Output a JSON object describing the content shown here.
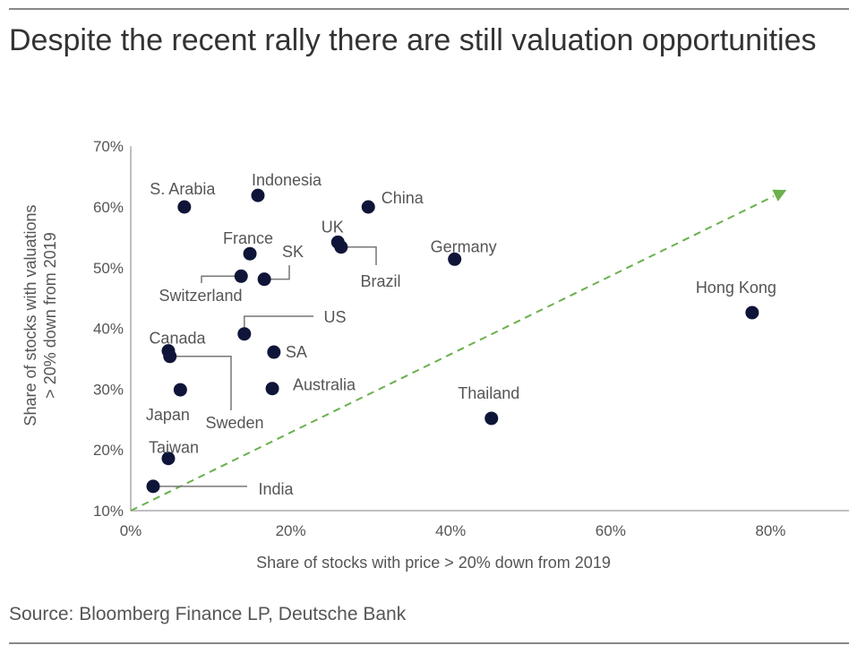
{
  "chart_data": {
    "type": "scatter",
    "title": "Despite the recent rally there are still valuation opportunities",
    "xlabel": "Share of stocks with price > 20% down from 2019",
    "ylabel": "Share of stocks with valuations > 20% down from 2019",
    "xlim": [
      0,
      85
    ],
    "ylim": [
      10,
      70
    ],
    "xticks": [
      "0%",
      "20%",
      "40%",
      "60%",
      "80%"
    ],
    "yticks": [
      "10%",
      "20%",
      "30%",
      "40%",
      "50%",
      "60%",
      "70%"
    ],
    "grid": false,
    "point_color": "#0f1538",
    "trend_color": "#6ab04c",
    "trend_line": {
      "from": [
        0,
        10
      ],
      "to": [
        82,
        62.8
      ],
      "style": "dashed-arrow"
    },
    "points": [
      {
        "label": "S. Arabia",
        "x": 6.7,
        "y": 60.0
      },
      {
        "label": "Indonesia",
        "x": 15.9,
        "y": 61.9
      },
      {
        "label": "China",
        "x": 29.7,
        "y": 60.0
      },
      {
        "label": "France",
        "x": 14.9,
        "y": 52.3
      },
      {
        "label": "UK",
        "x": 25.9,
        "y": 54.2
      },
      {
        "label": "Brazil",
        "x": 26.3,
        "y": 53.4
      },
      {
        "label": "Germany",
        "x": 40.5,
        "y": 51.4
      },
      {
        "label": "Switzerland",
        "x": 13.8,
        "y": 48.6
      },
      {
        "label": "SK",
        "x": 16.7,
        "y": 48.1
      },
      {
        "label": "Hong Kong",
        "x": 77.7,
        "y": 42.6
      },
      {
        "label": "US",
        "x": 14.2,
        "y": 39.1
      },
      {
        "label": "Canada",
        "x": 4.7,
        "y": 36.3
      },
      {
        "label": "Sweden",
        "x": 4.9,
        "y": 35.4
      },
      {
        "label": "SA",
        "x": 17.9,
        "y": 36.1
      },
      {
        "label": "Japan",
        "x": 6.2,
        "y": 29.9
      },
      {
        "label": "Australia",
        "x": 17.7,
        "y": 30.1
      },
      {
        "label": "Thailand",
        "x": 45.1,
        "y": 25.2
      },
      {
        "label": "Taiwan",
        "x": 4.7,
        "y": 18.6
      },
      {
        "label": "India",
        "x": 2.8,
        "y": 14.0
      }
    ]
  },
  "source": "Source: Bloomberg Finance LP, Deutsche Bank"
}
